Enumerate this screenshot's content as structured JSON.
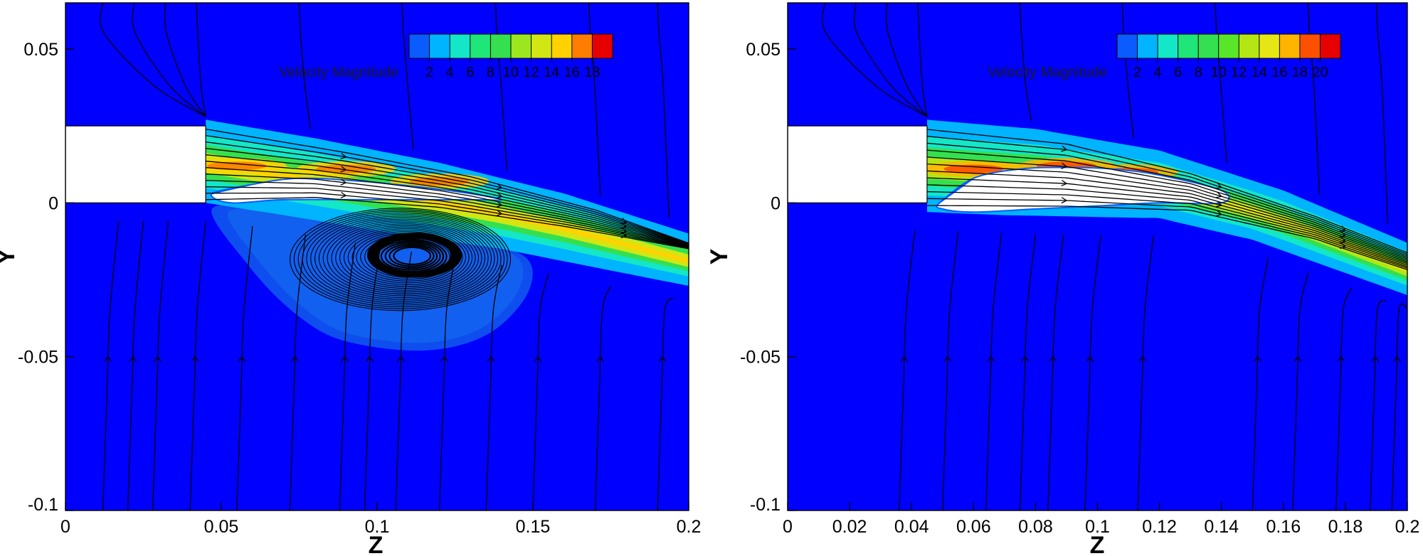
{
  "chart_data": [
    {
      "type": "heatmap",
      "plot": "velocity-contour-with-streamlines",
      "xlabel": "Z",
      "ylabel": "Y",
      "xlim": [
        0,
        0.2
      ],
      "ylim": [
        -0.1,
        0.065
      ],
      "x_ticks": [
        "0",
        "0.05",
        "0.1",
        "0.15",
        "0.2"
      ],
      "y_ticks": [
        "0.05",
        "0",
        "-0.05",
        "-0.1"
      ],
      "x_tick_values": [
        0,
        0.05,
        0.1,
        0.15,
        0.2
      ],
      "y_tick_values": [
        0.05,
        0,
        -0.05,
        -0.1
      ],
      "legend": {
        "title": "Velocity Magnitude",
        "labels": [
          "2",
          "4",
          "6",
          "8",
          "10",
          "12",
          "14",
          "16",
          "18"
        ],
        "colors": [
          "#0a5cff",
          "#00b4ff",
          "#14e6c8",
          "#1ee678",
          "#34e050",
          "#9be61e",
          "#d2e614",
          "#ffd200",
          "#ff7d00",
          "#e60000"
        ],
        "placement": "top-right"
      },
      "nozzle": {
        "z": [
          0,
          0.045
        ],
        "y": [
          0,
          0.025
        ]
      },
      "jet": {
        "upper_edge": [
          [
            0.045,
            0.027
          ],
          [
            0.08,
            0.021
          ],
          [
            0.12,
            0.013
          ],
          [
            0.16,
            0.003
          ],
          [
            0.2,
            -0.01
          ]
        ],
        "lower_edge": [
          [
            0.045,
            0.0
          ],
          [
            0.07,
            -0.004
          ],
          [
            0.1,
            -0.009
          ],
          [
            0.14,
            -0.015
          ],
          [
            0.17,
            -0.021
          ],
          [
            0.2,
            -0.027
          ]
        ],
        "upper_core": [
          [
            0.045,
            0.025
          ],
          [
            0.09,
            0.017
          ],
          [
            0.13,
            0.009
          ],
          [
            0.17,
            -0.002
          ],
          [
            0.2,
            -0.013
          ]
        ],
        "lower_core": [
          [
            0.045,
            0.0
          ],
          [
            0.08,
            0.001
          ],
          [
            0.12,
            -0.002
          ],
          [
            0.16,
            -0.008
          ],
          [
            0.2,
            -0.015
          ]
        ],
        "peak_y": [
          [
            0.055,
            0.012
          ],
          [
            0.09,
            0.011
          ],
          [
            0.12,
            0.007
          ]
        ]
      },
      "separation_bubble": {
        "outline": [
          [
            0.047,
            0.003
          ],
          [
            0.06,
            0.006
          ],
          [
            0.075,
            0.008
          ],
          [
            0.095,
            0.007
          ],
          [
            0.115,
            0.005
          ],
          [
            0.13,
            0.003
          ],
          [
            0.14,
            0.001
          ],
          [
            0.13,
            0.001
          ],
          [
            0.1,
            0.001
          ],
          [
            0.07,
            0.001
          ],
          [
            0.053,
            0.0
          ]
        ]
      },
      "recirculation_zone": {
        "outline": [
          [
            0.047,
            -0.002
          ],
          [
            0.06,
            -0.022
          ],
          [
            0.075,
            -0.037
          ],
          [
            0.09,
            -0.045
          ],
          [
            0.115,
            -0.048
          ],
          [
            0.135,
            -0.043
          ],
          [
            0.148,
            -0.03
          ],
          [
            0.148,
            -0.018
          ],
          [
            0.13,
            -0.012
          ],
          [
            0.11,
            -0.008
          ],
          [
            0.09,
            -0.005
          ],
          [
            0.07,
            -0.003
          ]
        ],
        "vortex_center": [
          0.112,
          -0.017
        ],
        "vortex_radii": [
          0.032,
          0.018
        ]
      },
      "streamlines": {
        "inflow_x": [
          0.012,
          0.02,
          0.028,
          0.04,
          0.055,
          0.072,
          0.088,
          0.096,
          0.106,
          0.12,
          0.135,
          0.15,
          0.17,
          0.19
        ],
        "top_inflow_x": [
          0.012,
          0.022,
          0.032,
          0.042,
          0.075,
          0.108,
          0.138,
          0.168,
          0.19
        ],
        "jet_lines": 12
      }
    },
    {
      "type": "heatmap",
      "plot": "velocity-contour-with-streamlines",
      "xlabel": "Z",
      "ylabel": "Y",
      "xlim": [
        0,
        0.2
      ],
      "ylim": [
        -0.1,
        0.065
      ],
      "x_ticks": [
        "0",
        "0.02",
        "0.04",
        "0.06",
        "0.08",
        "0.1",
        "0.12",
        "0.14",
        "0.16",
        "0.18",
        "0.2"
      ],
      "y_ticks": [
        "0.05",
        "0",
        "-0.05",
        "-0.1"
      ],
      "x_tick_values": [
        0,
        0.02,
        0.04,
        0.06,
        0.08,
        0.1,
        0.12,
        0.14,
        0.16,
        0.18,
        0.2
      ],
      "y_tick_values": [
        0.05,
        0,
        -0.05,
        -0.1
      ],
      "legend": {
        "title": "Velocity Magnitude",
        "labels": [
          "2",
          "4",
          "6",
          "8",
          "10",
          "12",
          "14",
          "16",
          "18",
          "20"
        ],
        "colors": [
          "#0a5cff",
          "#00b4ff",
          "#14e6c8",
          "#1ee678",
          "#34e050",
          "#5ae628",
          "#b4e614",
          "#e6e614",
          "#ffb400",
          "#ff5000",
          "#e60000"
        ],
        "placement": "top-right"
      },
      "nozzle": {
        "z": [
          0,
          0.045
        ],
        "y": [
          0,
          0.025
        ]
      },
      "jet": {
        "upper_edge": [
          [
            0.045,
            0.027
          ],
          [
            0.08,
            0.024
          ],
          [
            0.12,
            0.017
          ],
          [
            0.16,
            0.004
          ],
          [
            0.2,
            -0.013
          ]
        ],
        "lower_edge": [
          [
            0.045,
            -0.003
          ],
          [
            0.07,
            -0.004
          ],
          [
            0.12,
            -0.005
          ],
          [
            0.15,
            -0.012
          ],
          [
            0.2,
            -0.03
          ]
        ],
        "upper_core": [
          [
            0.045,
            0.025
          ],
          [
            0.09,
            0.02
          ],
          [
            0.13,
            0.01
          ],
          [
            0.17,
            -0.004
          ],
          [
            0.2,
            -0.016
          ]
        ],
        "lower_core": [
          [
            0.045,
            -0.002
          ],
          [
            0.09,
            -0.002
          ],
          [
            0.13,
            -0.003
          ],
          [
            0.17,
            -0.012
          ],
          [
            0.2,
            -0.022
          ]
        ],
        "peak_y": [
          [
            0.06,
            0.011
          ],
          [
            0.09,
            0.012
          ],
          [
            0.11,
            0.01
          ]
        ]
      },
      "separation_bubble": {
        "outline": [
          [
            0.049,
            0.0
          ],
          [
            0.06,
            0.008
          ],
          [
            0.075,
            0.011
          ],
          [
            0.09,
            0.0115
          ],
          [
            0.105,
            0.011
          ],
          [
            0.12,
            0.009
          ],
          [
            0.14,
            0.004
          ],
          [
            0.14,
            0.0
          ],
          [
            0.12,
            0.0
          ],
          [
            0.1,
            -0.001
          ],
          [
            0.08,
            -0.002
          ],
          [
            0.06,
            -0.003
          ],
          [
            0.05,
            -0.002
          ]
        ]
      },
      "recirculation_zone": null,
      "streamlines": {
        "inflow_x": [
          0.036,
          0.05,
          0.064,
          0.075,
          0.084,
          0.096,
          0.113,
          0.15,
          0.163,
          0.177,
          0.188,
          0.195
        ],
        "top_inflow_x": [
          0.012,
          0.022,
          0.032,
          0.042,
          0.075,
          0.108,
          0.138,
          0.168,
          0.19
        ],
        "jet_lines": 12
      }
    }
  ]
}
